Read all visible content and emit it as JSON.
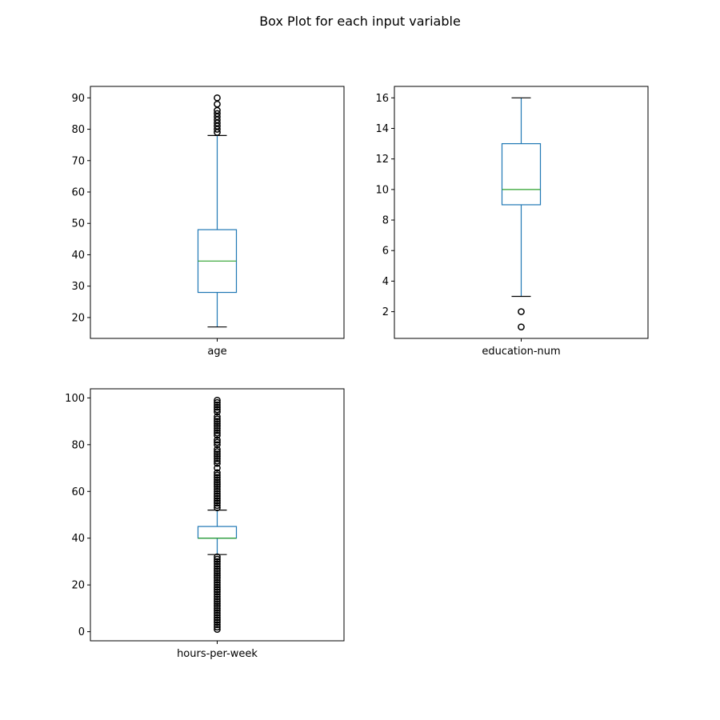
{
  "figure": {
    "title": "Box Plot for each input variable"
  },
  "chart_data": [
    {
      "type": "box",
      "category": "age",
      "yticks": [
        20,
        30,
        40,
        50,
        60,
        70,
        80,
        90
      ],
      "ylim": [
        13.35,
        93.65
      ],
      "grid": false,
      "box": {
        "whisker_low": 17,
        "q1": 28,
        "median": 38,
        "q3": 48,
        "whisker_high": 78
      },
      "outliers": [
        79,
        80,
        81,
        82,
        83,
        84,
        85,
        86,
        88,
        90
      ]
    },
    {
      "type": "box",
      "category": "education-num",
      "yticks": [
        2,
        4,
        6,
        8,
        10,
        12,
        14,
        16
      ],
      "ylim": [
        0.25,
        16.75
      ],
      "grid": false,
      "box": {
        "whisker_low": 3,
        "q1": 9,
        "median": 10,
        "q3": 13,
        "whisker_high": 16
      },
      "outliers": [
        1,
        2
      ]
    },
    {
      "type": "box",
      "category": "hours-per-week",
      "yticks": [
        0,
        20,
        40,
        60,
        80,
        100
      ],
      "ylim": [
        -3.9,
        103.9
      ],
      "grid": false,
      "box": {
        "whisker_low": 33,
        "q1": 40,
        "median": 40,
        "q3": 45,
        "whisker_high": 52
      },
      "outliers": [
        1,
        2,
        3,
        4,
        5,
        6,
        7,
        8,
        9,
        10,
        11,
        12,
        13,
        14,
        15,
        16,
        17,
        18,
        19,
        20,
        21,
        22,
        23,
        24,
        25,
        26,
        27,
        28,
        29,
        30,
        31,
        32,
        53,
        54,
        55,
        56,
        57,
        58,
        59,
        60,
        61,
        62,
        63,
        64,
        65,
        66,
        67,
        68,
        70,
        72,
        73,
        74,
        75,
        76,
        77,
        78,
        80,
        81,
        82,
        84,
        85,
        86,
        87,
        88,
        89,
        90,
        91,
        92,
        94,
        95,
        96,
        97,
        98,
        99
      ]
    }
  ]
}
